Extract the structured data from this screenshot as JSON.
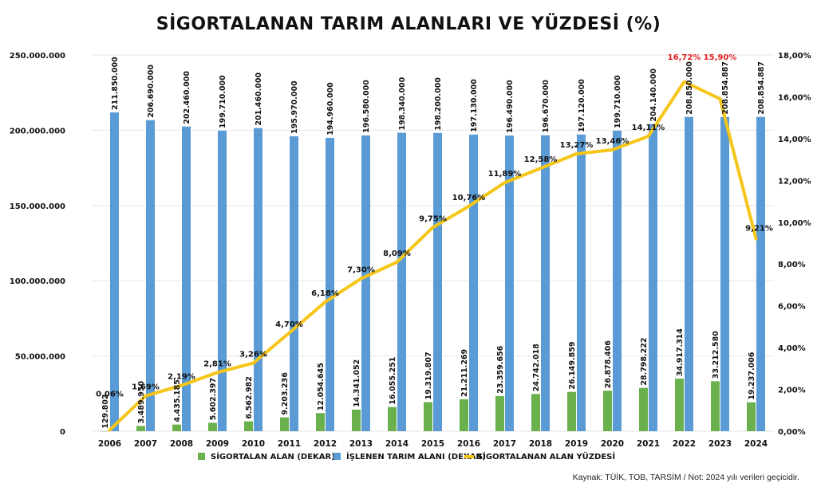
{
  "title": "SİGORTALANAN TARIM ALANLARI VE YÜZDESİ (%)",
  "source_note": "Kaynak: TÜİK, TOB, TARSİM  /  Not: 2024 yılı verileri geçicidir.",
  "chart_data": {
    "type": "bar",
    "categories": [
      "2006",
      "2007",
      "2008",
      "2009",
      "2010",
      "2011",
      "2012",
      "2013",
      "2014",
      "2015",
      "2016",
      "2017",
      "2018",
      "2019",
      "2020",
      "2021",
      "2022",
      "2023",
      "2024"
    ],
    "series": [
      {
        "name": "SİGORTALAN ALAN (DEKAR)",
        "type": "bar",
        "axis": "left",
        "color": "#6ab04c",
        "values": [
          129802,
          3489950,
          4435185,
          5602397,
          6562982,
          9203236,
          12054645,
          14341052,
          16055251,
          19319807,
          21211269,
          23359656,
          24742018,
          26149859,
          26878406,
          28798222,
          34917314,
          33212580,
          19237006
        ],
        "labels": [
          "129.802",
          "3.489.950",
          "4.435.185",
          "5.602.397",
          "6.562.982",
          "9.203.236",
          "12.054.645",
          "14.341.052",
          "16.055.251",
          "19.319.807",
          "21.211.269",
          "23.359.656",
          "24.742.018",
          "26.149.859",
          "26.878.406",
          "28.798.222",
          "34.917.314",
          "33.212.580",
          "19.237.006"
        ]
      },
      {
        "name": "İŞLENEN TARIM ALANI (DEKAR)",
        "type": "bar",
        "axis": "left",
        "color": "#5b9bd5",
        "values": [
          211850000,
          206690000,
          202460000,
          199710000,
          201460000,
          195970000,
          194960000,
          196580000,
          198340000,
          198200000,
          197130000,
          196490000,
          196670000,
          197120000,
          199710000,
          204140000,
          208850000,
          208854887,
          208854887
        ],
        "labels": [
          "211.850.000",
          "206.690.000",
          "202.460.000",
          "199.710.000",
          "201.460.000",
          "195.970.000",
          "194.960.000",
          "196.580.000",
          "198.340.000",
          "198.200.000",
          "197.130.000",
          "196.490.000",
          "196.670.000",
          "197.120.000",
          "199.710.000",
          "204.140.000",
          "208.850.000",
          "208.854.887",
          "208.854.887"
        ]
      },
      {
        "name": "SİGORTALANAN ALAN YÜZDESİ",
        "type": "line",
        "axis": "right",
        "color": "#f5c518",
        "values": [
          0.06,
          1.69,
          2.19,
          2.81,
          3.26,
          4.7,
          6.18,
          7.3,
          8.09,
          9.75,
          10.76,
          11.89,
          12.58,
          13.27,
          13.46,
          14.11,
          16.72,
          15.9,
          9.21
        ],
        "labels": [
          "0,06%",
          "1,69%",
          "2,19%",
          "2,81%",
          "3,26%",
          "4,70%",
          "6,18%",
          "7,30%",
          "8,09%",
          "9,75%",
          "10,76%",
          "11,89%",
          "12,58%",
          "13,27%",
          "13,46%",
          "14,11%",
          "16,72%",
          "15,90%",
          "9,21%"
        ],
        "highlight_label_color": "#e02020",
        "highlight_indices": [
          16,
          17
        ]
      }
    ],
    "y_left": {
      "ylim": [
        0,
        250000000
      ],
      "ticks": [
        0,
        50000000,
        100000000,
        150000000,
        200000000,
        250000000
      ],
      "tick_labels": [
        "0",
        "50.000.000",
        "100.000.000",
        "150.000.000",
        "200.000.000",
        "250.000.000"
      ]
    },
    "y_right": {
      "ylim": [
        0,
        18
      ],
      "ticks": [
        0,
        2,
        4,
        6,
        8,
        10,
        12,
        14,
        16,
        18
      ],
      "tick_labels": [
        "0,00%",
        "2,00%",
        "4,00%",
        "6,00%",
        "8,00%",
        "10,00%",
        "12,00%",
        "14,00%",
        "16,00%",
        "18,00%"
      ]
    },
    "grid": true,
    "legend_position": "bottom"
  }
}
